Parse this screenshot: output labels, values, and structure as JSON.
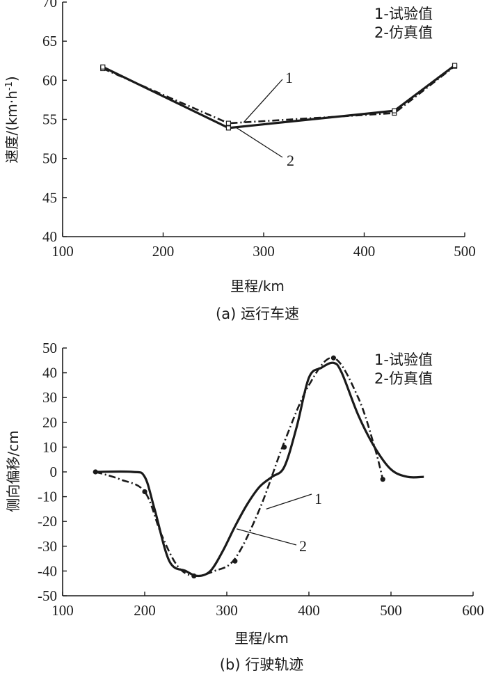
{
  "chart_data": [
    {
      "type": "line",
      "caption": "(a) 运行车速",
      "xlabel": "里程/km",
      "ylabel_main": "速度/(km·h",
      "ylabel_sup": "-1",
      "ylabel_end": ")",
      "xlim": [
        100,
        500
      ],
      "ylim": [
        40,
        70
      ],
      "xticks": [
        100,
        200,
        300,
        400,
        500
      ],
      "yticks": [
        40,
        45,
        50,
        55,
        60,
        65,
        70
      ],
      "legend": [
        "1-试验值",
        "2-仿真值"
      ],
      "callouts": [
        "1",
        "2"
      ],
      "series": [
        {
          "name": "1-试验值",
          "style": "dashdot",
          "x": [
            140,
            265,
            430,
            490
          ],
          "y": [
            61.5,
            54.5,
            55.8,
            61.8
          ]
        },
        {
          "name": "2-仿真值",
          "style": "solid",
          "x": [
            140,
            265,
            430,
            490
          ],
          "y": [
            61.7,
            53.9,
            56.1,
            61.9
          ]
        }
      ]
    },
    {
      "type": "line",
      "caption": "(b) 行驶轨迹",
      "xlabel": "里程/km",
      "ylabel": "侧向偏移/cm",
      "xlim": [
        100,
        600
      ],
      "ylim": [
        -50,
        50
      ],
      "xticks": [
        100,
        200,
        300,
        400,
        500,
        600
      ],
      "yticks": [
        50,
        40,
        30,
        20,
        10,
        0,
        -10,
        -20,
        -30,
        -40,
        -50
      ],
      "legend": [
        "1-试验值",
        "2-仿真值"
      ],
      "callouts": [
        "1",
        "2"
      ],
      "series": [
        {
          "name": "1-试验值",
          "style": "dashdot",
          "x": [
            140,
            170,
            200,
            220,
            240,
            260,
            285,
            310,
            340,
            370,
            400,
            430,
            460,
            480,
            490
          ],
          "y": [
            0,
            -3,
            -8,
            -25,
            -38,
            -42,
            -40,
            -35,
            -15,
            12,
            35,
            46,
            30,
            10,
            -3
          ],
          "markers": [
            [
              140,
              0
            ],
            [
              200,
              -8
            ],
            [
              260,
              -42
            ],
            [
              310,
              -36
            ],
            [
              370,
              10
            ],
            [
              430,
              46
            ],
            [
              490,
              -3
            ]
          ]
        },
        {
          "name": "2-仿真值",
          "style": "solid",
          "x": [
            140,
            185,
            200,
            212,
            230,
            250,
            265,
            280,
            295,
            310,
            325,
            340,
            355,
            370,
            385,
            400,
            415,
            430,
            440,
            460,
            480,
            500,
            520,
            540
          ],
          "y": [
            0,
            0,
            -2,
            -15,
            -36,
            -40,
            -42,
            -40,
            -32,
            -22,
            -13,
            -6,
            -2,
            2,
            18,
            38,
            42,
            44,
            40,
            23,
            10,
            1,
            -2,
            -2
          ]
        }
      ]
    }
  ]
}
